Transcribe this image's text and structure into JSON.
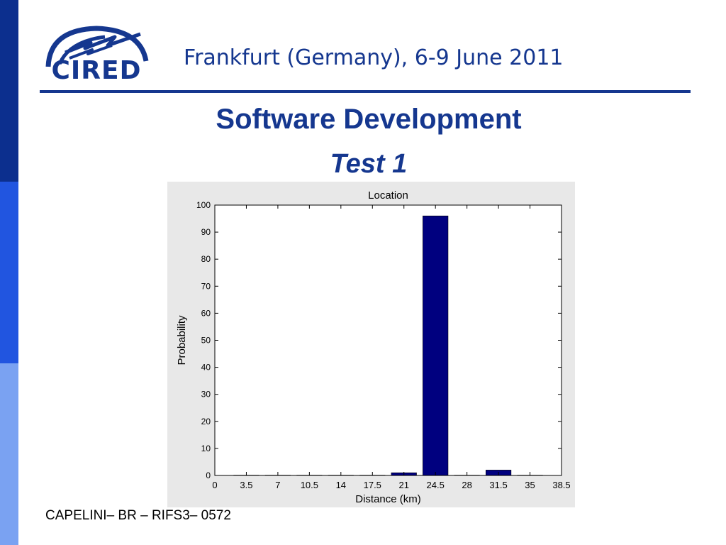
{
  "logo": {
    "text": "CIRED"
  },
  "header": {
    "text": "Frankfurt (Germany), 6-9 June 2011"
  },
  "title": {
    "main": "Software Development",
    "sub": "Test 1"
  },
  "footer": {
    "text": "CAPELINI– BR – RIFS3– 0572"
  },
  "colors": {
    "brand": "#15378f",
    "bar": "#00007f",
    "figure_bg": "#e8e8e8"
  },
  "chart_data": {
    "type": "bar",
    "title": "Location",
    "xlabel": "Distance (km)",
    "ylabel": "Probability",
    "x": [
      0,
      3.5,
      7,
      10.5,
      14,
      17.5,
      21,
      24.5,
      28,
      31.5,
      35,
      38.5
    ],
    "values": [
      0,
      0.1,
      0.1,
      0.1,
      0.1,
      0.1,
      1,
      96,
      0.1,
      2,
      0.1,
      0
    ],
    "xticks": [
      "0",
      "3.5",
      "7",
      "10.5",
      "14",
      "17.5",
      "21",
      "24.5",
      "28",
      "31.5",
      "35",
      "38.5"
    ],
    "yticks": [
      "0",
      "10",
      "20",
      "30",
      "40",
      "50",
      "60",
      "70",
      "80",
      "90",
      "100"
    ],
    "xlim": [
      0,
      38.5
    ],
    "ylim": [
      0,
      100
    ],
    "grid": false
  }
}
